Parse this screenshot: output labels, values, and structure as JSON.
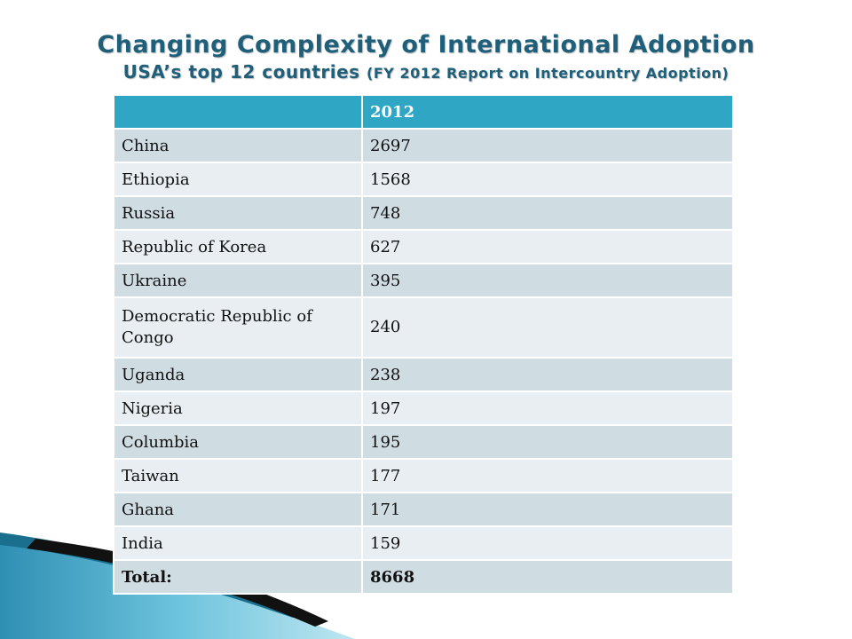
{
  "title": "Changing Complexity of International Adoption",
  "subtitle_main": "USA’s top 12 countries",
  "subtitle_detail": "(FY 2012 Report on Intercountry Adoption)",
  "table": {
    "headers": [
      "",
      "2012"
    ],
    "rows": [
      {
        "country": "China",
        "value": "2697"
      },
      {
        "country": "Ethiopia",
        "value": "1568"
      },
      {
        "country": "Russia",
        "value": "748"
      },
      {
        "country": "Republic of Korea",
        "value": "627"
      },
      {
        "country": "Ukraine",
        "value": "395"
      },
      {
        "country": "Democratic Republic of Congo",
        "value": "240"
      },
      {
        "country": "Uganda",
        "value": "238"
      },
      {
        "country": "Nigeria",
        "value": "197"
      },
      {
        "country": "Columbia",
        "value": "195"
      },
      {
        "country": "Taiwan",
        "value": "177"
      },
      {
        "country": "Ghana",
        "value": "171"
      },
      {
        "country": "India",
        "value": "159"
      }
    ],
    "total": {
      "label": "Total:",
      "value": "8668"
    }
  },
  "colors": {
    "title": "#1f5f7a",
    "header_fill": "#2ea6c4",
    "row_dark": "#cfdce2",
    "row_light": "#e8eef1"
  }
}
